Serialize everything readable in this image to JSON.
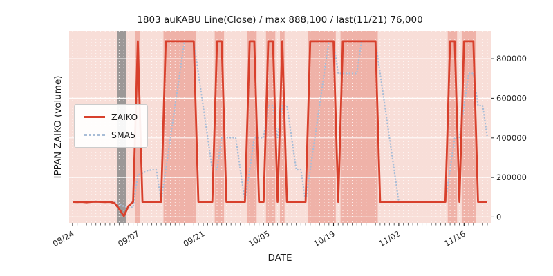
{
  "chart_data": {
    "type": "line",
    "title": "1803 auKABU Line(Close) / max 888,100 / last(11/21) 76,000",
    "xlabel": "DATE",
    "ylabel": "IPPAN ZAIKO (volume)",
    "ylim": [
      -30000,
      940000
    ],
    "yticks": [
      0,
      200000,
      400000,
      600000,
      800000
    ],
    "xtick_labels": [
      "08/24",
      "09/07",
      "09/21",
      "10/05",
      "10/19",
      "11/02",
      "11/16"
    ],
    "xtick_indices": [
      0,
      14,
      28,
      42,
      56,
      70,
      84
    ],
    "grid": true,
    "legend_position": "center-left",
    "background": "#f8ded8",
    "x": [
      "08/24",
      "08/25",
      "08/26",
      "08/27",
      "08/28",
      "08/29",
      "08/30",
      "08/31",
      "09/01",
      "09/02",
      "09/03",
      "09/04",
      "09/05",
      "09/06",
      "09/07",
      "09/08",
      "09/09",
      "09/10",
      "09/11",
      "09/12",
      "09/13",
      "09/14",
      "09/15",
      "09/16",
      "09/17",
      "09/18",
      "09/19",
      "09/20",
      "09/21",
      "09/22",
      "09/23",
      "09/24",
      "09/25",
      "09/26",
      "09/27",
      "09/28",
      "09/29",
      "09/30",
      "10/01",
      "10/02",
      "10/03",
      "10/04",
      "10/05",
      "10/06",
      "10/07",
      "10/08",
      "10/09",
      "10/10",
      "10/11",
      "10/12",
      "10/13",
      "10/14",
      "10/15",
      "10/16",
      "10/17",
      "10/18",
      "10/19",
      "10/20",
      "10/21",
      "10/22",
      "10/23",
      "10/24",
      "10/25",
      "10/26",
      "10/27",
      "10/28",
      "10/29",
      "10/30",
      "10/31",
      "11/01",
      "11/02",
      "11/03",
      "11/04",
      "11/05",
      "11/06",
      "11/07",
      "11/08",
      "11/09",
      "11/10",
      "11/11",
      "11/12",
      "11/13",
      "11/14",
      "11/15",
      "11/16",
      "11/17",
      "11/18",
      "11/19",
      "11/20",
      "11/21"
    ],
    "series": [
      {
        "name": "ZAIKO",
        "color": "#d8402c",
        "style": "solid",
        "values": [
          76000,
          75000,
          76000,
          74000,
          76000,
          77000,
          76000,
          75000,
          76000,
          70000,
          40000,
          5000,
          55000,
          76000,
          888100,
          76000,
          76000,
          76000,
          76000,
          76000,
          888100,
          888100,
          888100,
          888100,
          888100,
          888100,
          888100,
          76000,
          76000,
          76000,
          76000,
          888100,
          888100,
          76000,
          76000,
          76000,
          76000,
          76000,
          888100,
          888100,
          76000,
          76000,
          888100,
          888100,
          76000,
          888100,
          76000,
          76000,
          76000,
          76000,
          76000,
          888100,
          888100,
          888100,
          888100,
          888100,
          888100,
          76000,
          888100,
          888100,
          888100,
          888100,
          888100,
          888100,
          888100,
          888100,
          76000,
          76000,
          76000,
          76000,
          76000,
          76000,
          76000,
          76000,
          76000,
          76000,
          76000,
          76000,
          76000,
          76000,
          76000,
          888100,
          888100,
          76000,
          888100,
          888100,
          888100,
          76000,
          76000,
          76000
        ]
      },
      {
        "name": "SMA5",
        "color": "#a8bdd7",
        "style": "dotted",
        "derived_from": "ZAIKO",
        "window": 5
      }
    ],
    "max_value": 888100,
    "last_value": 76000,
    "highlight_bands": {
      "fill": "rgba(216,64,44,0.28)",
      "threshold": 500000,
      "meaning": "days where ZAIKO is at high level"
    },
    "gray_band": {
      "start": "09/03",
      "end": "09/04",
      "color": "rgba(140,140,140,0.85)"
    }
  },
  "legend": {
    "items": [
      {
        "label": "ZAIKO"
      },
      {
        "label": "SMA5"
      }
    ]
  }
}
